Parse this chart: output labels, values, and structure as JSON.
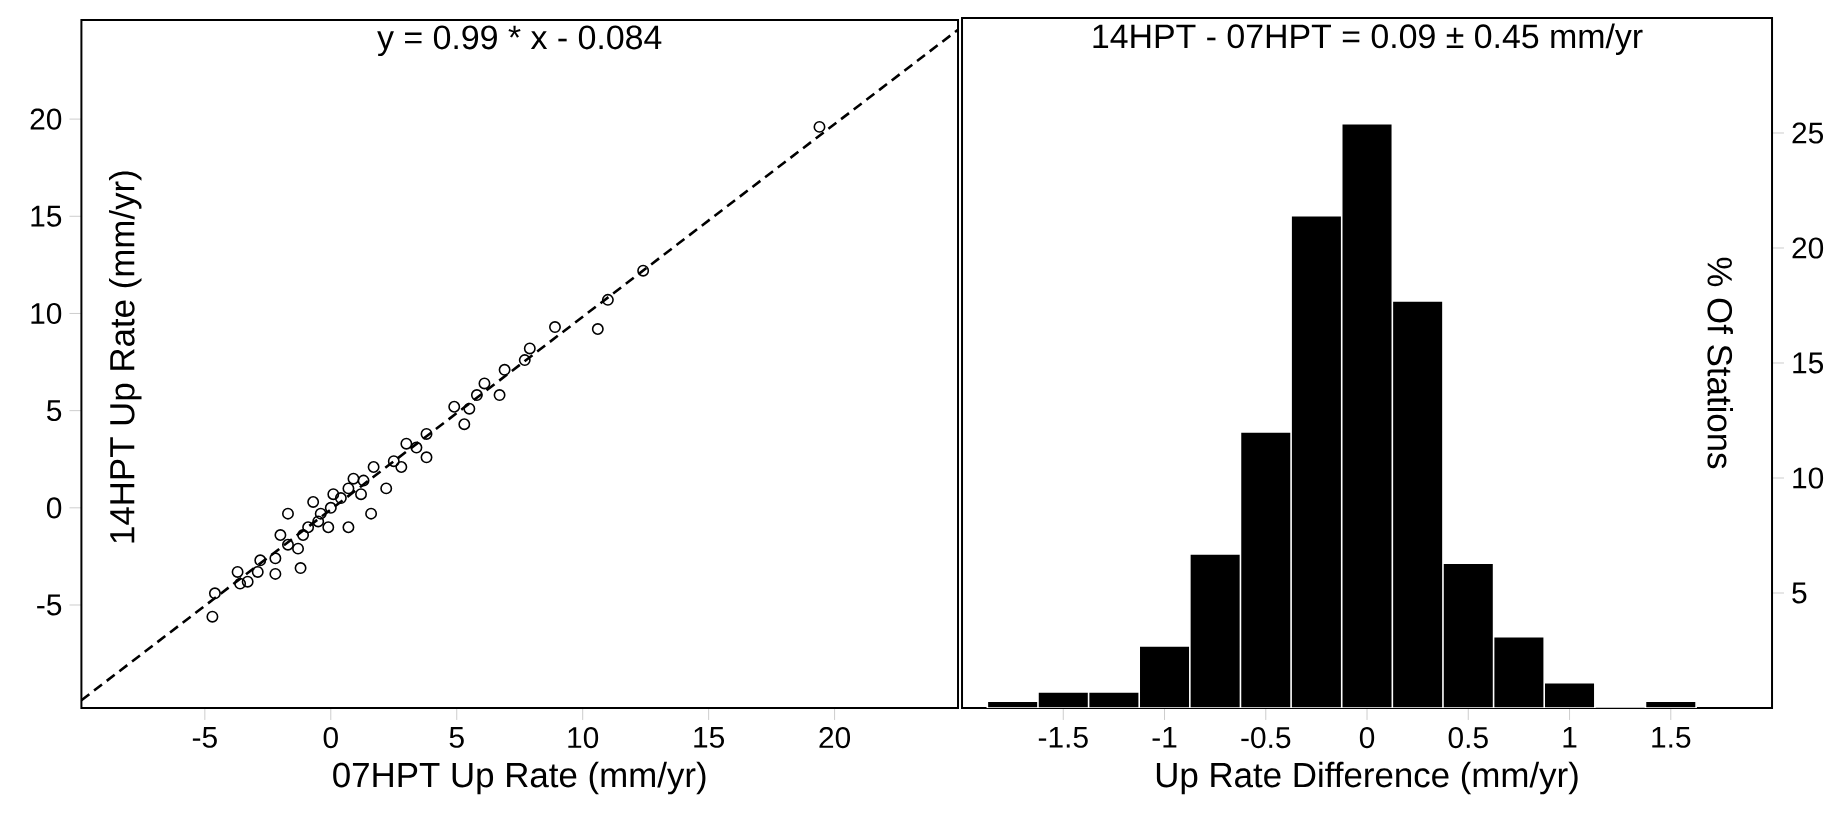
{
  "chart_data": [
    {
      "type": "scatter",
      "title": "y =  0.99 * x - 0.084",
      "xlabel": "07HPT Up Rate (mm/yr)",
      "ylabel": "14HPT Up Rate (mm/yr)",
      "xlim": [
        -9.9,
        24.9
      ],
      "ylim": [
        -10.3,
        25.1
      ],
      "xticks": [
        -5,
        0,
        5,
        10,
        15,
        20
      ],
      "yticks": [
        -5,
        0,
        5,
        10,
        15,
        20
      ],
      "series": [
        {
          "color": "#000000",
          "marker": "circle",
          "x": [
            19.4,
            12.4,
            11.0,
            10.6,
            8.9,
            7.9,
            7.7,
            6.9,
            6.7,
            6.1,
            5.8,
            4.9,
            5.3,
            5.5,
            3.8,
            3.8,
            3.0,
            2.5,
            1.7,
            1.6,
            1.3,
            0.7,
            0.4,
            0.7,
            0,
            -0.4,
            -0.7,
            -0.9,
            -1.7,
            -2.0,
            -1.2,
            -2.2,
            -2.8,
            -2.2,
            -2.9,
            -3.7,
            -3.3,
            -3.6,
            -4.6,
            -4.7,
            0.9,
            0.1,
            -0.5,
            -1.1,
            1.2,
            2.2,
            2.8,
            3.4,
            -1.3,
            -0.1,
            -1.7
          ],
          "values": [
            19.6,
            12.2,
            10.7,
            9.2,
            9.3,
            8.2,
            7.6,
            7.1,
            5.8,
            6.4,
            5.8,
            5.2,
            4.3,
            5.1,
            3.8,
            2.6,
            3.3,
            2.4,
            2.1,
            -0.3,
            1.4,
            1.0,
            0.5,
            -1.0,
            0,
            -0.3,
            0.3,
            -1.0,
            -0.3,
            -1.4,
            -3.1,
            -2.6,
            -2.7,
            -3.4,
            -3.3,
            -3.3,
            -3.8,
            -3.9,
            -4.4,
            -5.6,
            1.5,
            0.7,
            -0.7,
            -1.4,
            0.7,
            1.0,
            2.1,
            3.1,
            -2.1,
            -1.0,
            -1.9
          ]
        },
        {
          "type": "line",
          "color": "#000000",
          "line_style": "dashed",
          "x": [
            -9.9,
            24.9
          ],
          "values": [
            -9.9,
            24.6
          ]
        }
      ]
    },
    {
      "type": "histogram",
      "title": "14HPT - 07HPT =  0.09  ± 0.45 mm/yr",
      "xlabel": "Up Rate Difference (mm/yr)",
      "ylabel": "% Of Stations",
      "color": "#000000",
      "bins": [
        -1.875,
        -1.625,
        -1.375,
        -1.125,
        -0.875,
        -0.625,
        -0.375,
        -0.125,
        0.125,
        0.375,
        0.625,
        0.875,
        1.125,
        1.375,
        1.625
      ],
      "values": [
        0.3,
        0.7,
        0.7,
        2.7,
        6.7,
        12.0,
        21.4,
        25.4,
        17.7,
        6.3,
        3.1,
        1.1,
        0,
        0.3
      ],
      "xlim": [
        -2,
        2
      ],
      "ylim": [
        0,
        30
      ],
      "xticks": [
        -1.5,
        -1,
        -0.5,
        0,
        0.5,
        1,
        1.5
      ],
      "yticks": [
        5,
        10,
        15,
        20,
        25
      ]
    }
  ]
}
